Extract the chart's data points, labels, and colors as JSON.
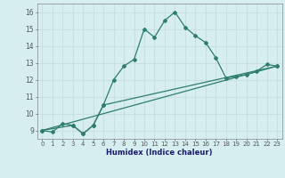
{
  "title": "",
  "xlabel": "Humidex (Indice chaleur)",
  "ylabel": "",
  "background_color": "#d6eef0",
  "grid_color": "#c8e0e3",
  "line_color": "#2e7d6e",
  "xlim": [
    -0.5,
    23.5
  ],
  "ylim": [
    8.5,
    16.5
  ],
  "xticks": [
    0,
    1,
    2,
    3,
    4,
    5,
    6,
    7,
    8,
    9,
    10,
    11,
    12,
    13,
    14,
    15,
    16,
    17,
    18,
    19,
    20,
    21,
    22,
    23
  ],
  "yticks": [
    9,
    10,
    11,
    12,
    13,
    14,
    15,
    16
  ],
  "line1_x": [
    0,
    1,
    2,
    3,
    4,
    5,
    6,
    7,
    8,
    9,
    10,
    11,
    12,
    13,
    14,
    15,
    16,
    17,
    18,
    19,
    20,
    21,
    22,
    23
  ],
  "line1_y": [
    9.0,
    8.9,
    9.4,
    9.3,
    8.8,
    9.3,
    10.5,
    12.0,
    12.8,
    13.2,
    15.0,
    14.5,
    15.5,
    16.0,
    15.1,
    14.6,
    14.2,
    13.3,
    12.1,
    12.2,
    12.3,
    12.5,
    12.9,
    12.8
  ],
  "line2_x": [
    0,
    23
  ],
  "line2_y": [
    9.0,
    12.8
  ],
  "line3_x": [
    0,
    3,
    4,
    5,
    6,
    23
  ],
  "line3_y": [
    9.0,
    9.3,
    8.8,
    9.3,
    10.5,
    12.8
  ]
}
